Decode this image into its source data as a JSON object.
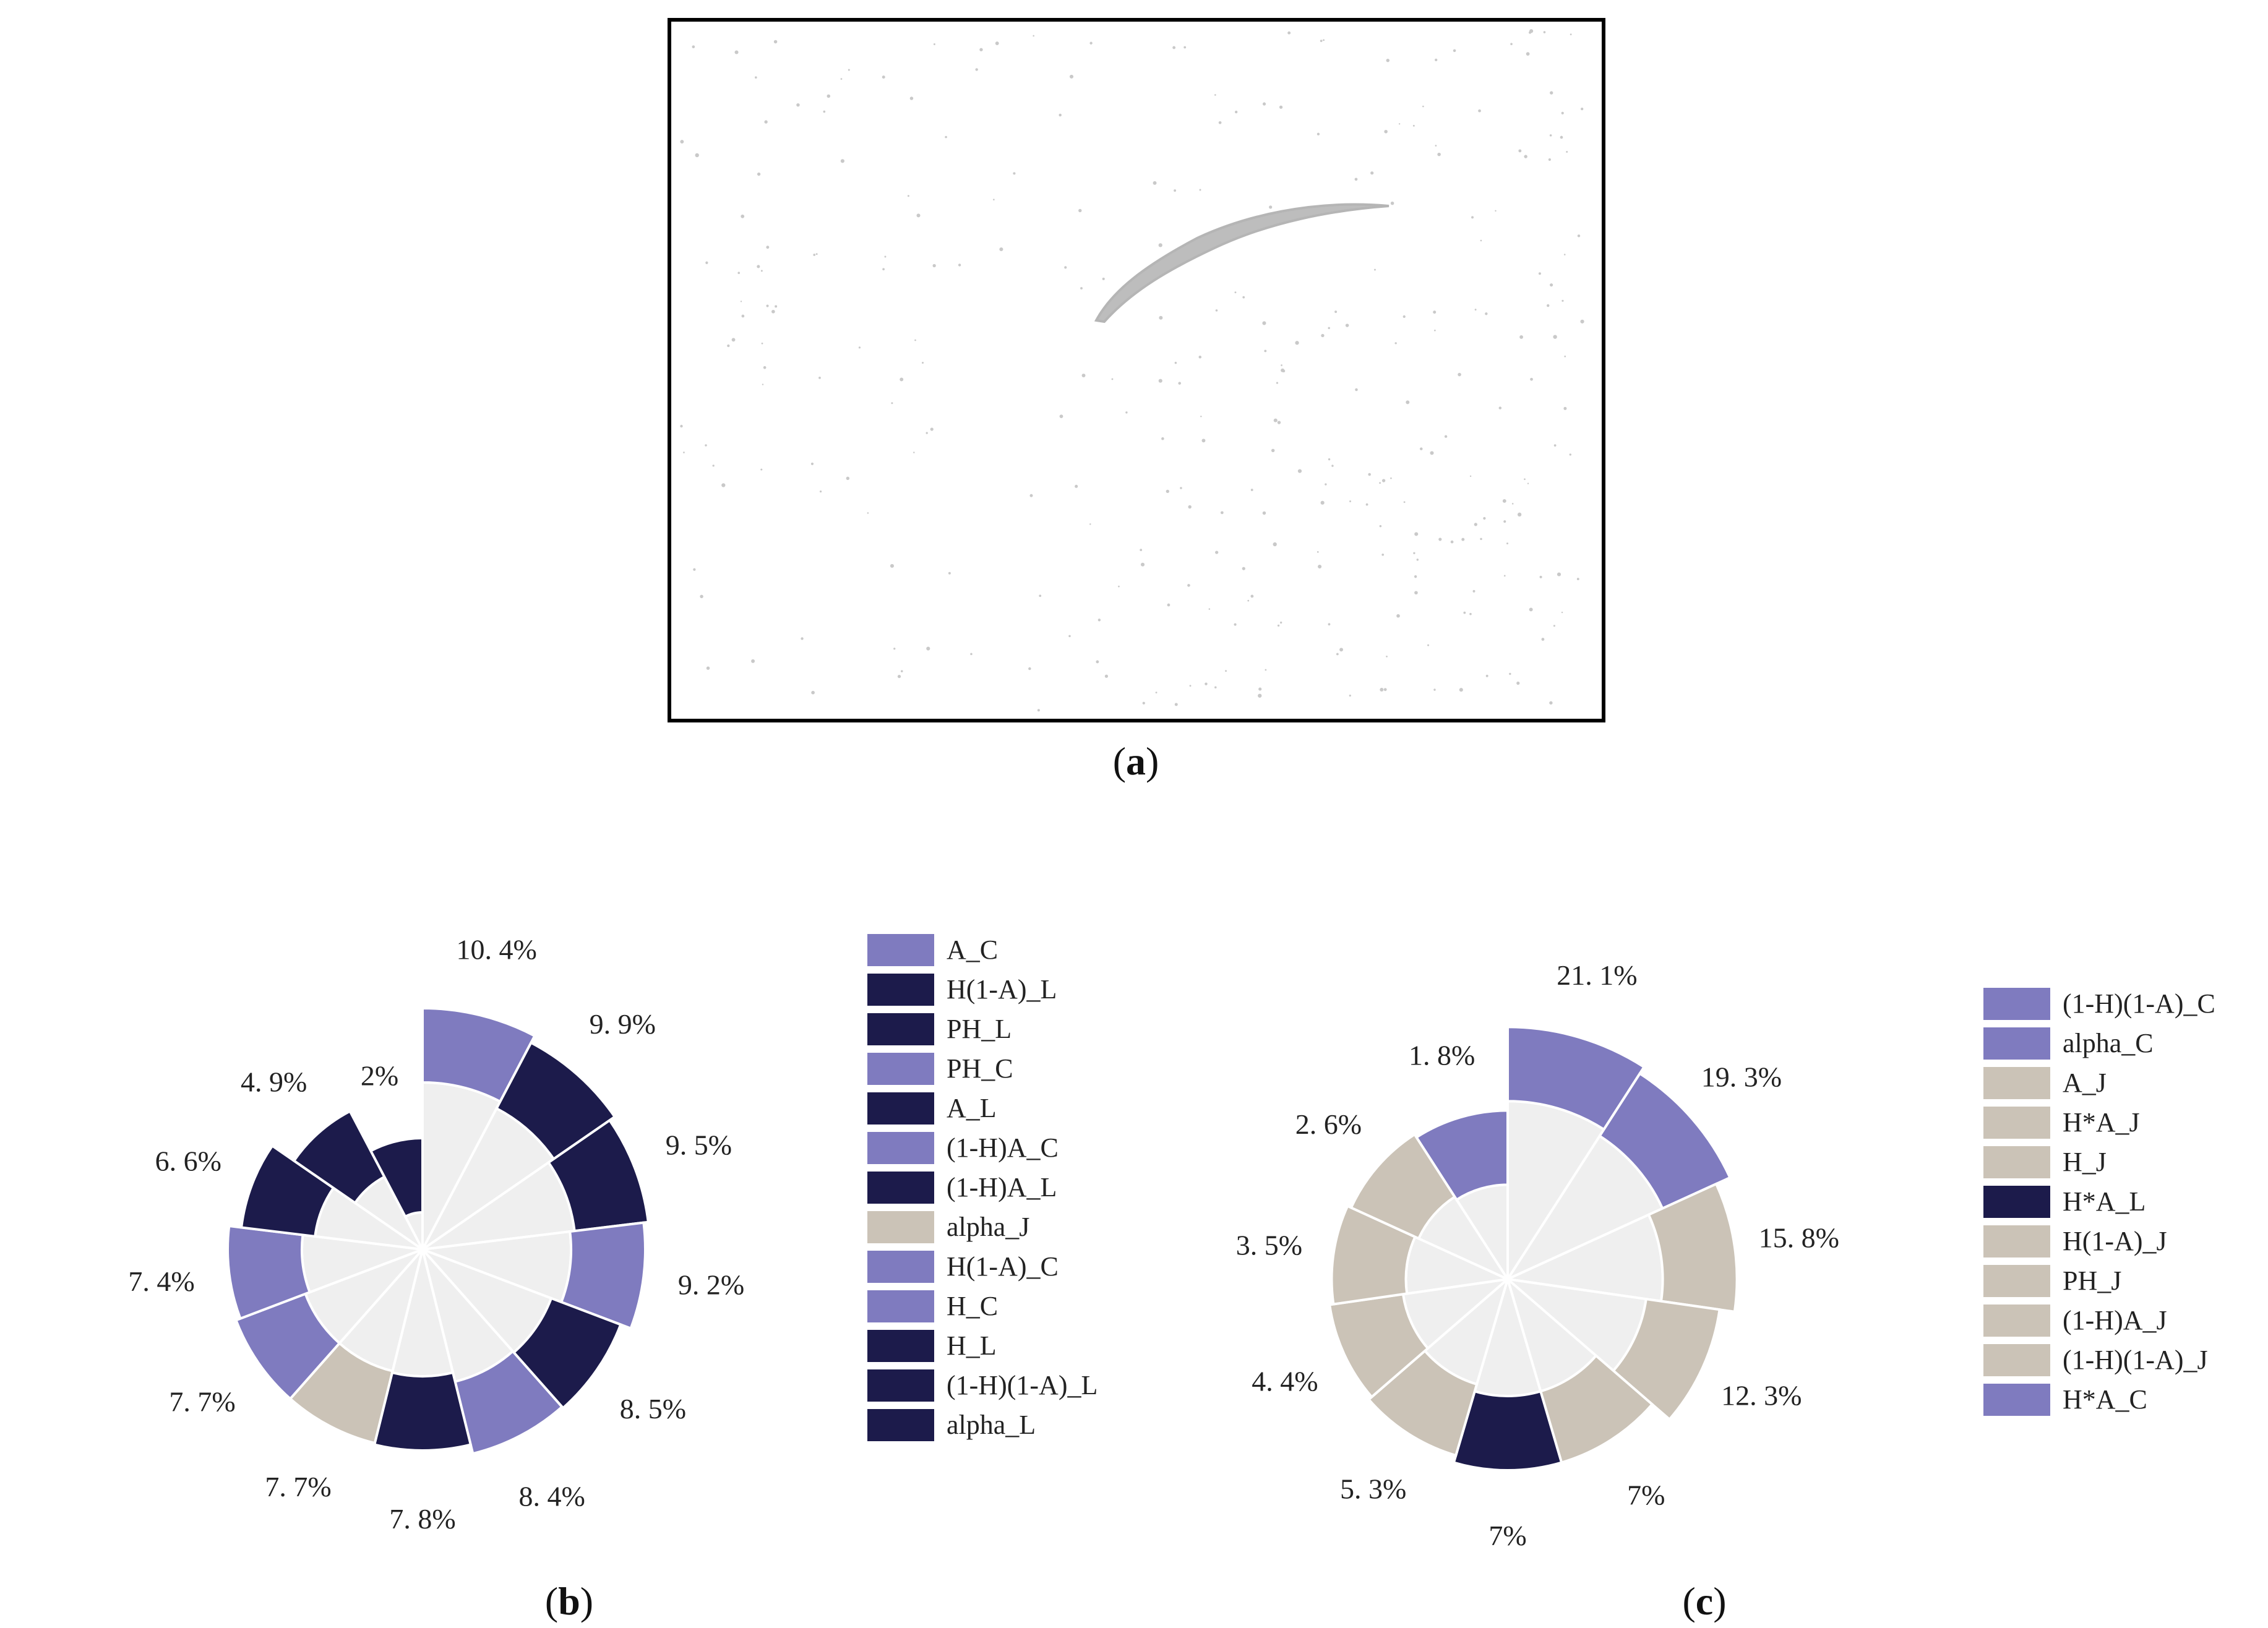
{
  "captions": {
    "a": {
      "open": "(",
      "letter": "a",
      "close": ")"
    },
    "b": {
      "open": "(",
      "letter": "b",
      "close": ")"
    },
    "c": {
      "open": "(",
      "letter": "c",
      "close": ")"
    }
  },
  "colors": {
    "C": "#7f7bbf",
    "L": "#1c1b4b",
    "J": "#cbc3b7",
    "wedge": "#efefef",
    "frame": "#000000",
    "streak": "#bdbdbd"
  },
  "chart_data": [
    {
      "type": "nightingale-rose",
      "panel": "b",
      "categories": [
        "A_C",
        "H(1-A)_L",
        "PH_L",
        "PH_C",
        "A_L",
        "(1-H)A_C",
        "(1-H)A_L",
        "alpha_J",
        "H(1-A)_C",
        "H_C",
        "H_L",
        "(1-H)(1-A)_L",
        "alpha_L"
      ],
      "values": [
        10.4,
        9.9,
        9.5,
        9.2,
        8.5,
        8.4,
        7.8,
        7.7,
        7.7,
        7.4,
        6.6,
        4.9,
        2
      ],
      "value_labels": [
        "10. 4%",
        "9. 9%",
        "9. 5%",
        "9. 2%",
        "8. 5%",
        "8. 4%",
        "7. 8%",
        "7. 7%",
        "7. 7%",
        "7. 4%",
        "6. 6%",
        "4. 9%",
        "2%"
      ],
      "groups": [
        "C",
        "L",
        "L",
        "C",
        "L",
        "C",
        "L",
        "J",
        "C",
        "C",
        "L",
        "L",
        "L"
      ],
      "legend": [
        {
          "label": "A_C",
          "group": "C"
        },
        {
          "label": "H(1-A)_L",
          "group": "L"
        },
        {
          "label": "PH_L",
          "group": "L"
        },
        {
          "label": "PH_C",
          "group": "C"
        },
        {
          "label": "A_L",
          "group": "L"
        },
        {
          "label": "(1-H)A_C",
          "group": "C"
        },
        {
          "label": "(1-H)A_L",
          "group": "L"
        },
        {
          "label": "alpha_J",
          "group": "J"
        },
        {
          "label": "H(1-A)_C",
          "group": "C"
        },
        {
          "label": "H_C",
          "group": "C"
        },
        {
          "label": "H_L",
          "group": "L"
        },
        {
          "label": "(1-H)(1-A)_L",
          "group": "L"
        },
        {
          "label": "alpha_L",
          "group": "L"
        }
      ],
      "legend_position": "right"
    },
    {
      "type": "nightingale-rose",
      "panel": "c",
      "categories": [
        "(1-H)(1-A)_C",
        "alpha_C",
        "A_J",
        "H*A_J",
        "H_J",
        "H*A_L",
        "H(1-A)_J",
        "PH_J",
        "(1-H)A_J",
        "(1-H)(1-A)_J",
        "H*A_C"
      ],
      "values": [
        21.1,
        19.3,
        15.8,
        12.3,
        7,
        7,
        5.3,
        4.4,
        3.5,
        2.6,
        1.8
      ],
      "value_labels": [
        "21. 1%",
        "19. 3%",
        "15. 8%",
        "12. 3%",
        "7%",
        "7%",
        "5. 3%",
        "4. 4%",
        "3. 5%",
        "2. 6%",
        "1. 8%"
      ],
      "groups": [
        "C",
        "C",
        "J",
        "J",
        "J",
        "L",
        "J",
        "J",
        "J",
        "J",
        "C"
      ],
      "legend": [
        {
          "label": "(1-H)(1-A)_C",
          "group": "C"
        },
        {
          "label": "alpha_C",
          "group": "C"
        },
        {
          "label": "A_J",
          "group": "J"
        },
        {
          "label": "H*A_J",
          "group": "J"
        },
        {
          "label": "H_J",
          "group": "J"
        },
        {
          "label": "H*A_L",
          "group": "L"
        },
        {
          "label": "H(1-A)_J",
          "group": "J"
        },
        {
          "label": "PH_J",
          "group": "J"
        },
        {
          "label": "(1-H)A_J",
          "group": "J"
        },
        {
          "label": "(1-H)(1-A)_J",
          "group": "J"
        },
        {
          "label": "H*A_C",
          "group": "C"
        }
      ],
      "legend_position": "right"
    }
  ]
}
